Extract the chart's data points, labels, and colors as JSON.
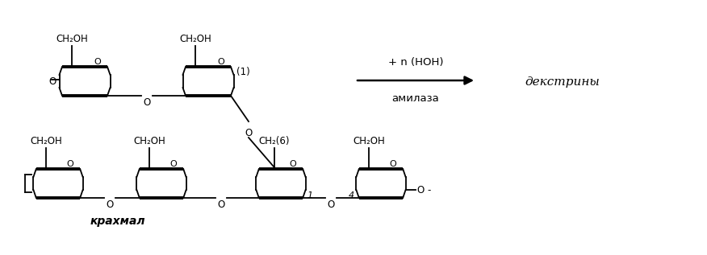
{
  "background_color": "#ffffff",
  "line_color": "#000000",
  "figsize": [
    8.76,
    3.17
  ],
  "dpi": 100,
  "arrow_label_top": "+ n (HOH)",
  "arrow_label_bottom": "амилаза",
  "product_label": "декстрины",
  "substrate_label": "крахмал",
  "ch2oh_label": "CH₂OH",
  "ch2_6_label": "CH₂(6)",
  "label_1": "(1)",
  "label_O": "O",
  "lw_thin": 1.3,
  "lw_thick": 2.8,
  "font_size": 8.5
}
